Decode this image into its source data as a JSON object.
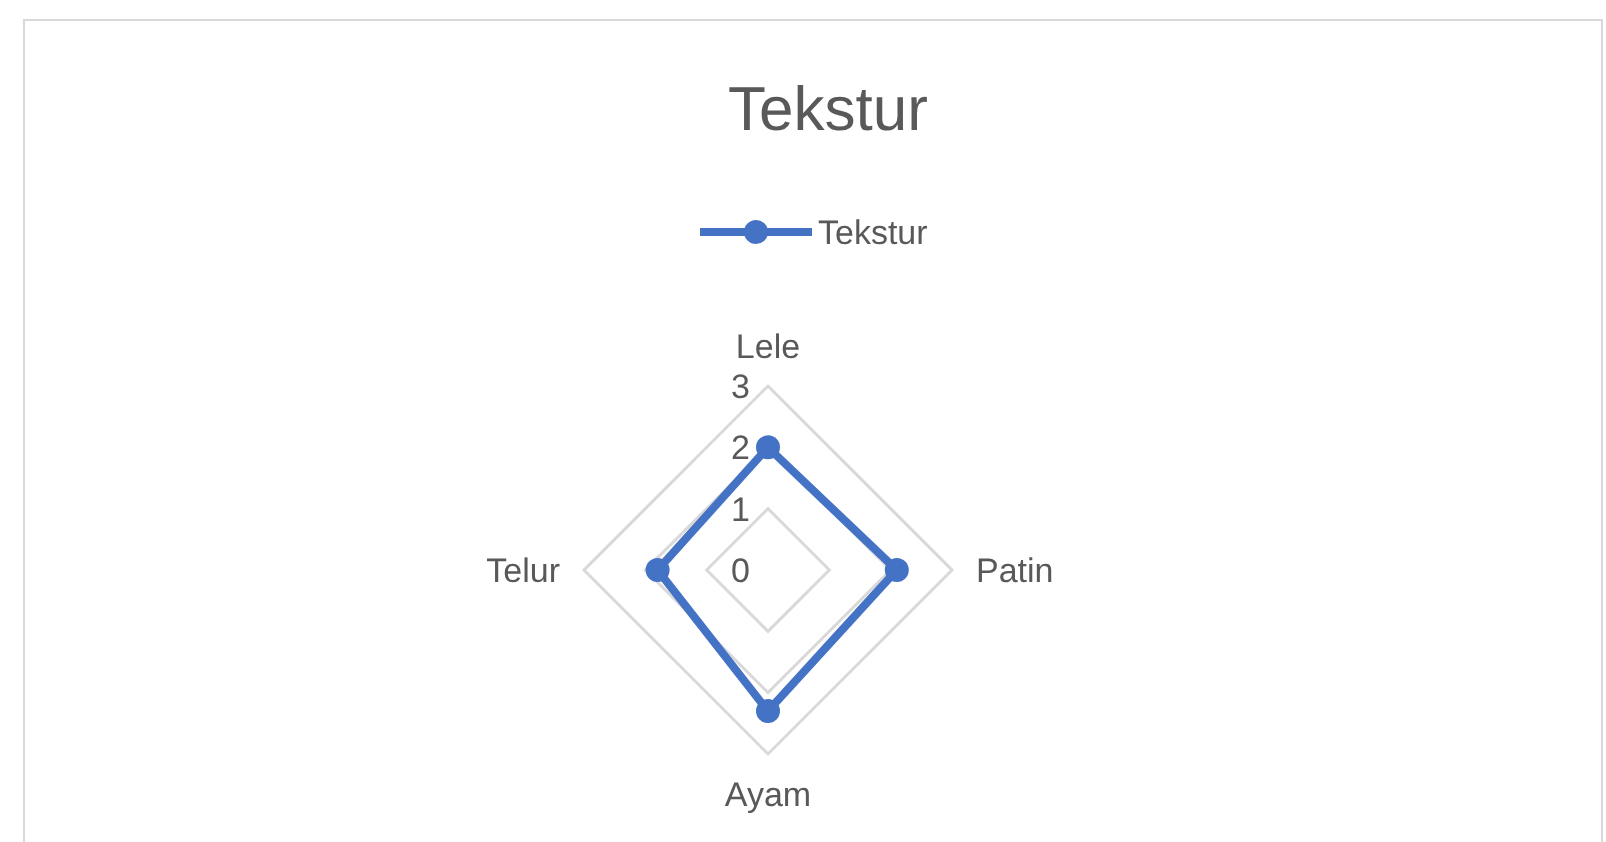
{
  "chart_data": {
    "type": "radar",
    "title": "Tekstur",
    "categories": [
      "Lele",
      "Patin",
      "Ayam",
      "Telur"
    ],
    "series": [
      {
        "name": "Tekstur",
        "color": "#4472c4",
        "values": [
          2,
          2.1,
          2.3,
          1.8
        ]
      }
    ],
    "ylim": [
      0,
      3
    ],
    "yticks": [
      0,
      1,
      2,
      3
    ],
    "grid": true,
    "legend": "top",
    "marker": "circle",
    "line_style": "solid"
  }
}
